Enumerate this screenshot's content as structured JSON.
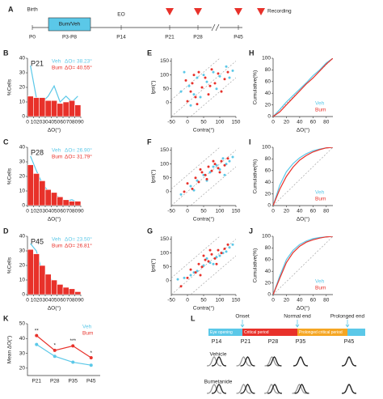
{
  "timeline": {
    "panel": "A",
    "birth": "Birth",
    "treatment": "Bum/Veh",
    "eye_opening": "EO",
    "legend": "Recording",
    "ticks": [
      "P0",
      "P3-P8",
      "P14",
      "P21",
      "P28",
      "P45"
    ]
  },
  "chart_data": [
    {
      "type": "histogram",
      "panel": "B",
      "title": "P21",
      "x_label": "ΔO(°)",
      "y_label": "%Cells",
      "bins": [
        0,
        10,
        20,
        30,
        40,
        50,
        60,
        70,
        80,
        90
      ],
      "xlim": [
        0,
        90
      ],
      "xticks": [
        0,
        10,
        20,
        30,
        40,
        50,
        60,
        70,
        80,
        90
      ],
      "ylim": [
        0,
        40
      ],
      "yticks": [
        0,
        10,
        20,
        30,
        40
      ],
      "legend": "top-right",
      "series": [
        {
          "name": "Veh",
          "stat": "ΔO= 38.23°",
          "color": "#5bc8e8",
          "style": "line",
          "values": [
            35,
            13,
            10,
            14,
            21,
            10,
            14,
            10,
            14
          ]
        },
        {
          "name": "Bum",
          "stat": "ΔO= 40.55°",
          "color": "#e8312a",
          "style": "bar",
          "values": [
            14,
            13,
            13,
            11,
            11,
            9,
            10,
            11,
            8
          ]
        }
      ]
    },
    {
      "type": "scatter",
      "panel": "E",
      "x_label": "Contra(°)",
      "y_label": "Ipsi(°)",
      "xlim": [
        -50,
        150
      ],
      "xticks": [
        -50,
        0,
        50,
        100,
        150
      ],
      "ylim": [
        -50,
        160
      ],
      "yticks": [
        0,
        50,
        100,
        150
      ],
      "series": [
        {
          "name": "Veh",
          "color": "#5bc8e8",
          "x": [
            -10,
            5,
            20,
            30,
            50,
            60,
            80,
            100,
            120,
            140,
            10,
            40,
            90,
            130,
            -20
          ],
          "values": [
            110,
            60,
            30,
            90,
            100,
            75,
            110,
            95,
            130,
            115,
            -10,
            20,
            50,
            90,
            40
          ]
        },
        {
          "name": "Bum",
          "color": "#e8312a",
          "x": [
            0,
            10,
            15,
            25,
            35,
            45,
            55,
            65,
            75,
            85,
            95,
            105,
            115,
            125,
            -5,
            20,
            30,
            70
          ],
          "values": [
            5,
            40,
            70,
            20,
            110,
            55,
            90,
            30,
            120,
            70,
            105,
            40,
            85,
            110,
            80,
            100,
            -5,
            60
          ]
        }
      ]
    },
    {
      "type": "line",
      "panel": "H",
      "x_label": "ΔO(°)",
      "y_label": "Cumulative(%)",
      "x": [
        0,
        10,
        20,
        30,
        40,
        50,
        60,
        70,
        80,
        90
      ],
      "xlim": [
        0,
        90
      ],
      "xticks": [
        0,
        20,
        40,
        60,
        80
      ],
      "ylim": [
        0,
        100
      ],
      "yticks": [
        0,
        20,
        40,
        60,
        80,
        100
      ],
      "legend": "bottom-right",
      "series": [
        {
          "name": "Veh",
          "color": "#5bc8e8",
          "values": [
            0,
            12,
            25,
            36,
            47,
            58,
            70,
            80,
            92,
            100
          ]
        },
        {
          "name": "Bum",
          "color": "#e8312a",
          "values": [
            0,
            8,
            20,
            32,
            44,
            56,
            66,
            78,
            90,
            100
          ]
        }
      ]
    },
    {
      "type": "histogram",
      "panel": "C",
      "title": "P28",
      "x_label": "ΔO(°)",
      "y_label": "%Cells",
      "bins": [
        0,
        10,
        20,
        30,
        40,
        50,
        60,
        70,
        80,
        90
      ],
      "xlim": [
        0,
        90
      ],
      "xticks": [
        0,
        10,
        20,
        30,
        40,
        50,
        60,
        70,
        80,
        90
      ],
      "ylim": [
        0,
        40
      ],
      "yticks": [
        0,
        10,
        20,
        30,
        40
      ],
      "legend": "top-right",
      "series": [
        {
          "name": "Veh",
          "stat": "ΔO= 26.90°",
          "color": "#5bc8e8",
          "style": "line",
          "values": [
            34,
            24,
            15,
            10,
            8,
            5,
            3,
            4,
            2
          ]
        },
        {
          "name": "Bum",
          "stat": "ΔO= 31.79°",
          "color": "#e8312a",
          "style": "bar",
          "values": [
            28,
            22,
            17,
            11,
            9,
            6,
            4,
            3,
            3
          ]
        }
      ]
    },
    {
      "type": "scatter",
      "panel": "F",
      "x_label": "Contra(°)",
      "y_label": "Ipsi(°)",
      "xlim": [
        -50,
        150
      ],
      "xticks": [
        -50,
        0,
        50,
        100,
        150
      ],
      "ylim": [
        -50,
        160
      ],
      "yticks": [
        0,
        50,
        100,
        150
      ],
      "series": [
        {
          "name": "Veh",
          "color": "#5bc8e8",
          "x": [
            -20,
            10,
            30,
            50,
            70,
            90,
            100,
            110,
            120,
            130,
            140,
            60,
            80,
            20,
            115
          ],
          "values": [
            -10,
            20,
            40,
            60,
            70,
            95,
            80,
            120,
            100,
            110,
            125,
            40,
            90,
            5,
            60
          ]
        },
        {
          "name": "Bum",
          "color": "#e8312a",
          "x": [
            -10,
            0,
            15,
            25,
            35,
            45,
            55,
            65,
            75,
            85,
            95,
            105,
            115,
            125,
            40,
            60,
            80,
            100
          ],
          "values": [
            0,
            30,
            10,
            50,
            35,
            70,
            60,
            90,
            75,
            100,
            85,
            110,
            95,
            120,
            80,
            45,
            110,
            70
          ]
        }
      ]
    },
    {
      "type": "line",
      "panel": "I",
      "x_label": "ΔO(°)",
      "y_label": "Cumulative(%)",
      "x": [
        0,
        10,
        20,
        30,
        40,
        50,
        60,
        70,
        80,
        90
      ],
      "xlim": [
        0,
        90
      ],
      "xticks": [
        0,
        20,
        40,
        60,
        80
      ],
      "ylim": [
        0,
        100
      ],
      "yticks": [
        0,
        20,
        40,
        60,
        80,
        100
      ],
      "legend": "bottom-right",
      "series": [
        {
          "name": "Veh",
          "color": "#5bc8e8",
          "values": [
            0,
            35,
            58,
            72,
            82,
            89,
            94,
            97,
            99,
            100
          ]
        },
        {
          "name": "Bum",
          "color": "#e8312a",
          "values": [
            0,
            28,
            50,
            66,
            78,
            86,
            92,
            96,
            99,
            100
          ]
        }
      ]
    },
    {
      "type": "histogram",
      "panel": "D",
      "title": "P45",
      "x_label": "ΔO(°)",
      "y_label": "%Cells",
      "bins": [
        0,
        10,
        20,
        30,
        40,
        50,
        60,
        70,
        80,
        90
      ],
      "xlim": [
        0,
        90
      ],
      "xticks": [
        0,
        10,
        20,
        30,
        40,
        50,
        60,
        70,
        80,
        90
      ],
      "ylim": [
        0,
        40
      ],
      "yticks": [
        0,
        10,
        20,
        30,
        40
      ],
      "legend": "top-right",
      "series": [
        {
          "name": "Veh",
          "stat": "ΔO= 23.50°",
          "color": "#5bc8e8",
          "style": "line",
          "values": [
            35,
            30,
            15,
            13,
            8,
            5,
            4,
            2,
            1
          ]
        },
        {
          "name": "Bum",
          "stat": "ΔO= 26.81°",
          "color": "#e8312a",
          "style": "bar",
          "values": [
            31,
            28,
            20,
            14,
            10,
            7,
            5,
            4,
            2
          ]
        }
      ]
    },
    {
      "type": "scatter",
      "panel": "G",
      "x_label": "Contra(°)",
      "y_label": "Ipsi(°)",
      "xlim": [
        -50,
        150
      ],
      "xticks": [
        -50,
        0,
        50,
        100,
        150
      ],
      "ylim": [
        -50,
        160
      ],
      "yticks": [
        0,
        50,
        100,
        150
      ],
      "series": [
        {
          "name": "Veh",
          "color": "#5bc8e8",
          "x": [
            -30,
            -10,
            10,
            30,
            50,
            70,
            90,
            110,
            130,
            140,
            60,
            100,
            20,
            80,
            120
          ],
          "values": [
            5,
            10,
            20,
            35,
            55,
            65,
            85,
            100,
            120,
            130,
            80,
            90,
            30,
            60,
            105
          ]
        },
        {
          "name": "Bum",
          "color": "#e8312a",
          "x": [
            -20,
            0,
            10,
            25,
            35,
            45,
            55,
            65,
            75,
            85,
            95,
            105,
            115,
            125,
            50,
            70,
            90,
            40
          ],
          "values": [
            -20,
            10,
            40,
            30,
            60,
            50,
            75,
            70,
            95,
            80,
            110,
            100,
            115,
            130,
            90,
            110,
            60,
            20
          ]
        }
      ]
    },
    {
      "type": "line",
      "panel": "J",
      "x_label": "ΔO(°)",
      "y_label": "Cumulative(%)",
      "x": [
        0,
        10,
        20,
        30,
        40,
        50,
        60,
        70,
        80,
        90
      ],
      "xlim": [
        0,
        90
      ],
      "xticks": [
        0,
        20,
        40,
        60,
        80
      ],
      "ylim": [
        0,
        100
      ],
      "yticks": [
        0,
        20,
        40,
        60,
        80,
        100
      ],
      "legend": "bottom-right",
      "series": [
        {
          "name": "Veh",
          "color": "#5bc8e8",
          "values": [
            0,
            32,
            60,
            76,
            86,
            92,
            96,
            98,
            99,
            100
          ]
        },
        {
          "name": "Bum",
          "color": "#e8312a",
          "values": [
            0,
            28,
            55,
            72,
            83,
            90,
            94,
            97,
            99,
            100
          ]
        }
      ]
    },
    {
      "type": "line",
      "panel": "K",
      "y_label": "Mean ΔO(°)",
      "categories": [
        "P21",
        "P28",
        "P35",
        "P45"
      ],
      "ylim": [
        15,
        50
      ],
      "yticks": [
        20,
        30,
        40,
        50
      ],
      "legend": "top-right",
      "annotations": [
        "**",
        "*",
        "***",
        "*"
      ],
      "series": [
        {
          "name": "Veh",
          "color": "#5bc8e8",
          "values": [
            36,
            28,
            24,
            22
          ]
        },
        {
          "name": "Bum",
          "color": "#e8312a",
          "values": [
            42,
            32,
            35,
            27
          ]
        }
      ]
    }
  ],
  "diagram": {
    "panel": "L",
    "top_labels": [
      "Onset",
      "Normal end",
      "Prolonged end"
    ],
    "bar_labels": [
      "Eye opening",
      "Critical period",
      "Prolonged critical period"
    ],
    "ages": [
      "P14",
      "P21",
      "P28",
      "P35",
      "P45"
    ],
    "rows": [
      "Vehicle",
      "Bumetanide"
    ]
  }
}
